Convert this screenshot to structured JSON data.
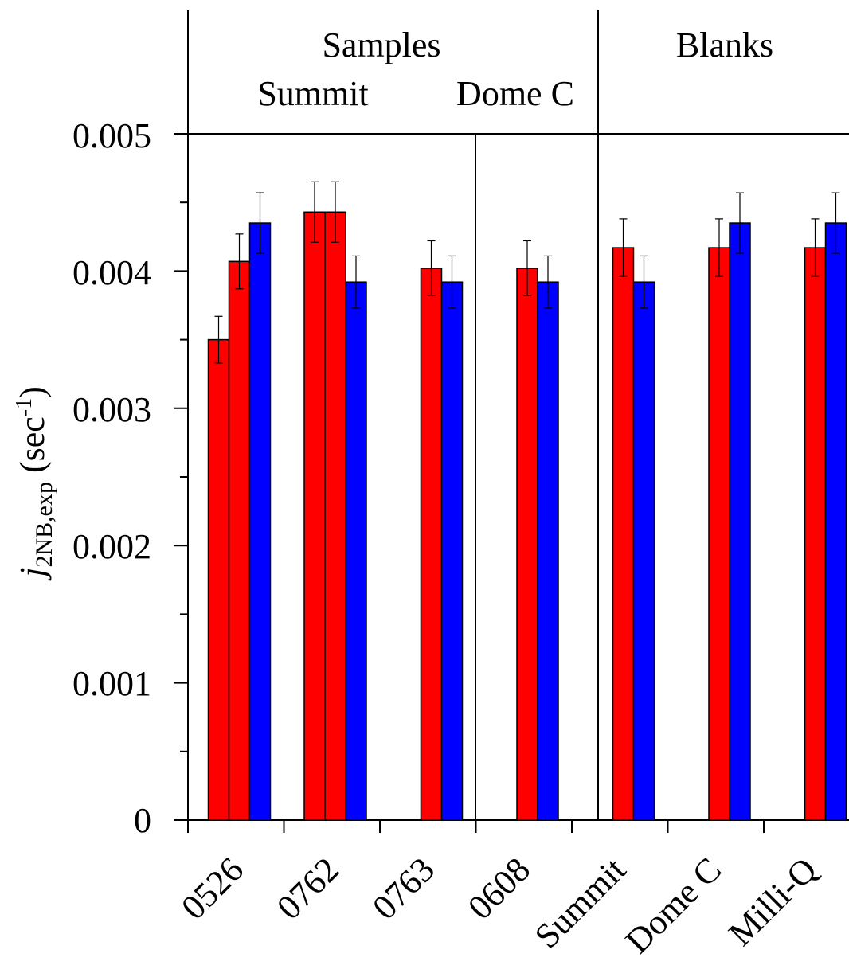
{
  "chart_data": {
    "type": "bar",
    "header": {
      "groups": [
        {
          "label": "Samples",
          "sublabels": [
            "Summit",
            "Dome C"
          ]
        },
        {
          "label": "Blanks"
        }
      ]
    },
    "ylabel": {
      "main": "j",
      "sub": "2NB,exp",
      "unit_open": " (sec",
      "unit_sup": "-1",
      "unit_close": ")"
    },
    "ylim": [
      0,
      0.005
    ],
    "yticks": [
      "0",
      "0.001",
      "0.002",
      "0.003",
      "0.004",
      "0.005"
    ],
    "ytick_values": [
      0,
      0.001,
      0.002,
      0.003,
      0.004,
      0.005
    ],
    "categories": [
      "0526",
      "0762",
      "0763",
      "0608",
      "Summit",
      "Dome C",
      "Milli-Q"
    ],
    "colors": {
      "red": "#ff0000",
      "blue": "#0000ff"
    },
    "bars": [
      {
        "category": "0526",
        "color": "red",
        "value": 0.0035,
        "error": 0.00017
      },
      {
        "category": "0526",
        "color": "red",
        "value": 0.00407,
        "error": 0.0002
      },
      {
        "category": "0526",
        "color": "blue",
        "value": 0.00435,
        "error": 0.00022
      },
      {
        "category": "0762",
        "color": "red",
        "value": 0.00443,
        "error": 0.00022
      },
      {
        "category": "0762",
        "color": "red",
        "value": 0.00443,
        "error": 0.00022
      },
      {
        "category": "0762",
        "color": "blue",
        "value": 0.00392,
        "error": 0.00019
      },
      {
        "category": "0763",
        "color": "red",
        "value": 0.00402,
        "error": 0.0002
      },
      {
        "category": "0763",
        "color": "blue",
        "value": 0.00392,
        "error": 0.00019
      },
      {
        "category": "0608",
        "color": "red",
        "value": 0.00402,
        "error": 0.0002
      },
      {
        "category": "0608",
        "color": "blue",
        "value": 0.00392,
        "error": 0.00019
      },
      {
        "category": "Summit",
        "color": "red",
        "value": 0.00417,
        "error": 0.00021
      },
      {
        "category": "Summit",
        "color": "blue",
        "value": 0.00392,
        "error": 0.00019
      },
      {
        "category": "Dome C",
        "color": "red",
        "value": 0.00417,
        "error": 0.00021
      },
      {
        "category": "Dome C",
        "color": "blue",
        "value": 0.00435,
        "error": 0.00022
      },
      {
        "category": "Milli-Q",
        "color": "red",
        "value": 0.00417,
        "error": 0.00021
      },
      {
        "category": "Milli-Q",
        "color": "blue",
        "value": 0.00435,
        "error": 0.00022
      }
    ]
  }
}
